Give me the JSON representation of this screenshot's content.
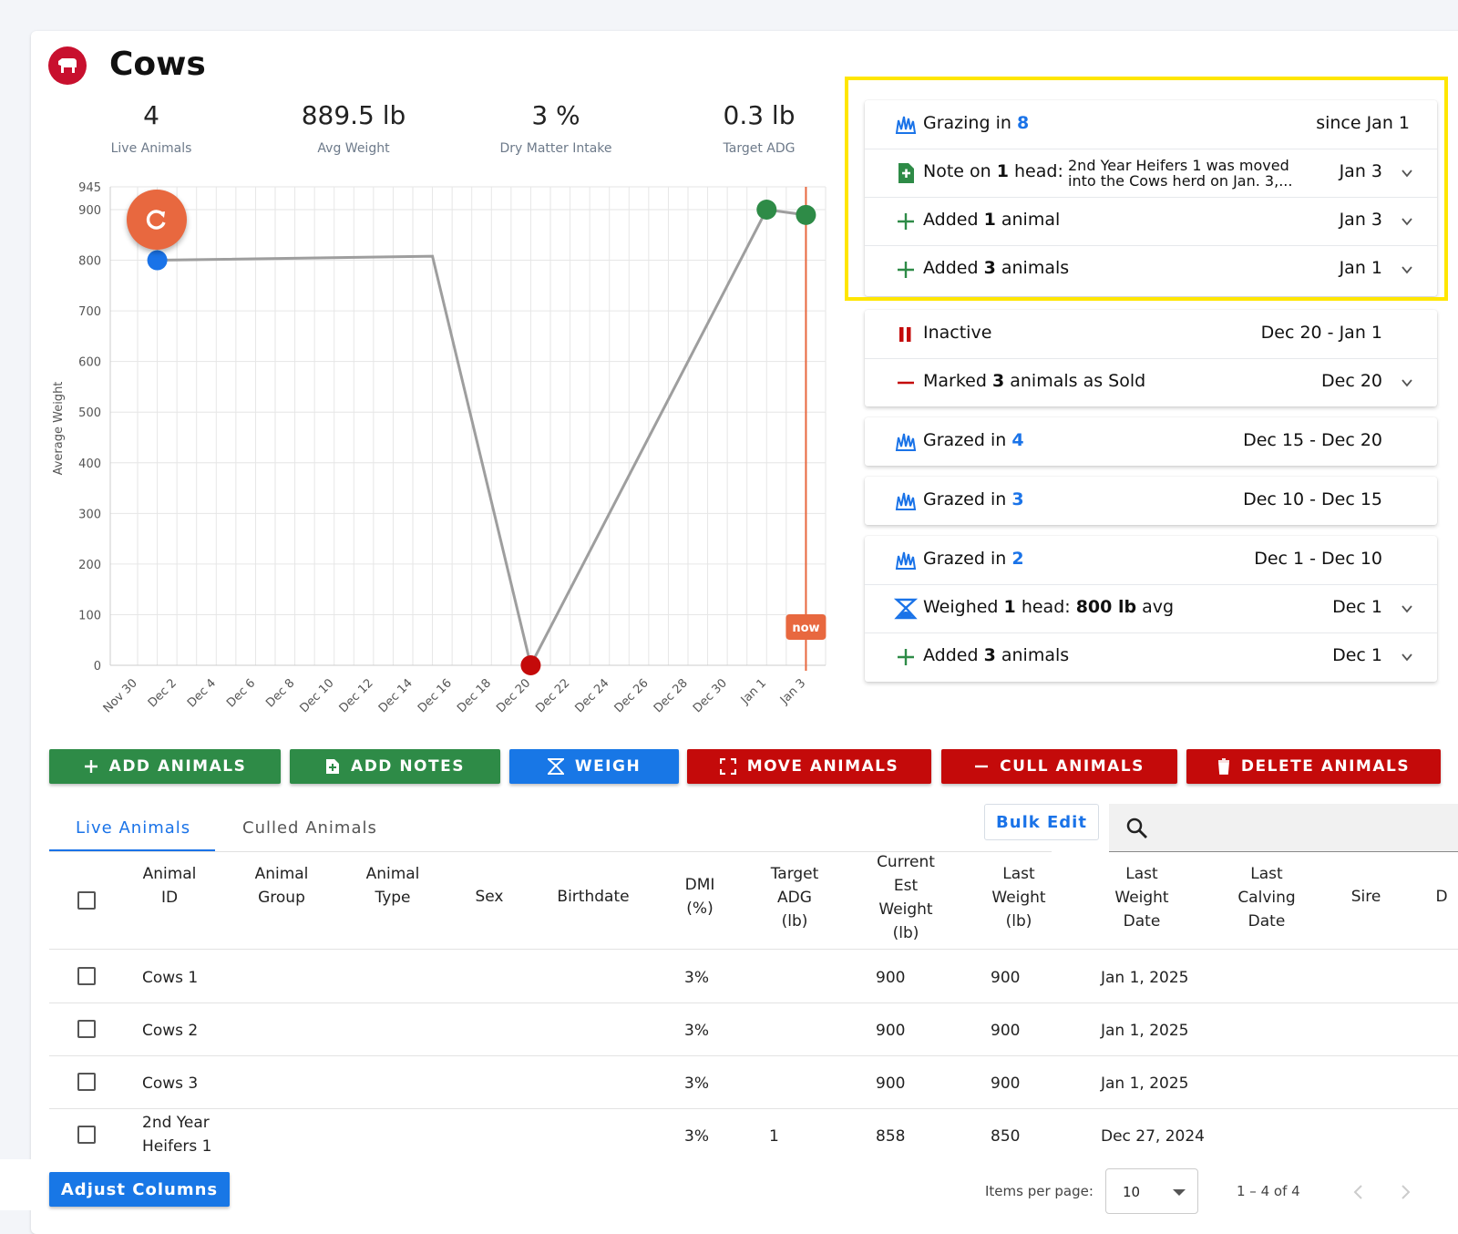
{
  "header": {
    "title": "Cows"
  },
  "stats": [
    {
      "value": "4",
      "label": "Live Animals"
    },
    {
      "value": "889.5 lb",
      "label": "Avg Weight"
    },
    {
      "value": "3 %",
      "label": "Dry Matter Intake"
    },
    {
      "value": "0.3 lb",
      "label": "Target ADG"
    }
  ],
  "chart_data": {
    "type": "line",
    "ylabel": "Average Weight",
    "ylim": [
      0,
      945
    ],
    "y_ticks": [
      "945",
      "900",
      "800",
      "700",
      "600",
      "500",
      "400",
      "300",
      "200",
      "100",
      "0"
    ],
    "x_ticks": [
      "Nov 30",
      "Dec 2",
      "Dec 4",
      "Dec 6",
      "Dec 8",
      "Dec 10",
      "Dec 12",
      "Dec 14",
      "Dec 16",
      "Dec 18",
      "Dec 20",
      "Dec 22",
      "Dec 24",
      "Dec 26",
      "Dec 28",
      "Dec 30",
      "Jan 1",
      "Jan 3"
    ],
    "points": [
      {
        "x": "Dec 1",
        "y": 800,
        "color": "#1a73e8"
      },
      {
        "x": "Dec 15",
        "y": 808,
        "color": null
      },
      {
        "x": "Dec 20",
        "y": 0,
        "color": "#c40a0a"
      },
      {
        "x": "Jan 1",
        "y": 900,
        "color": "#2e8b47"
      },
      {
        "x": "Jan 3",
        "y": 889.5,
        "color": "#2e8b47"
      }
    ],
    "line_color": "#9e9e9e",
    "now_marker": {
      "x": "Jan 3",
      "label": "now",
      "color": "#e8683f"
    },
    "grid": true
  },
  "timeline": [
    {
      "icon": "grass-icon",
      "text": "Grazing in ",
      "num": "8",
      "date": "since Jan 1",
      "chev": false
    },
    {
      "icon": "note-icon",
      "text": "Note on ",
      "bold": "1",
      "text2": " head:",
      "note": "2nd Year Heifers 1 was moved into the Cows herd on Jan. 3,...",
      "date": "Jan 3",
      "chev": true
    },
    {
      "icon": "plus-icon",
      "text": "Added ",
      "bold": "1",
      "text2": " animal",
      "date": "Jan 3",
      "chev": true
    },
    {
      "icon": "plus-icon",
      "text": "Added ",
      "bold": "3",
      "text2": " animals",
      "date": "Jan 1",
      "chev": true
    },
    {
      "icon": "pause-icon",
      "text": "Inactive",
      "date": "Dec 20 - Jan 1",
      "chev": false
    },
    {
      "icon": "minus-icon",
      "text": "Marked ",
      "bold": "3",
      "text2": " animals as Sold",
      "date": "Dec 20",
      "chev": true
    },
    {
      "icon": "grass-icon",
      "text": "Grazed in ",
      "num": "4",
      "date": "Dec 15 - Dec 20",
      "chev": false
    },
    {
      "icon": "grass-icon",
      "text": "Grazed in ",
      "num": "3",
      "date": "Dec 10 - Dec 15",
      "chev": false
    },
    {
      "icon": "grass-icon",
      "text": "Grazed in ",
      "num": "2",
      "date": "Dec 1 - Dec 10",
      "chev": false
    },
    {
      "icon": "scale-icon",
      "text": "Weighed ",
      "bold": "1",
      "text2": " head: ",
      "bold2": "800 lb",
      "text3": " avg",
      "date": "Dec 1",
      "chev": true
    },
    {
      "icon": "plus-icon",
      "text": "Added ",
      "bold": "3",
      "text2": " animals",
      "date": "Dec 1",
      "chev": true
    }
  ],
  "actions": {
    "add_animals": "ADD ANIMALS",
    "add_notes": "ADD NOTES",
    "weigh": "WEIGH",
    "move_animals": "MOVE ANIMALS",
    "cull_animals": "CULL ANIMALS",
    "delete_animals": "DELETE ANIMALS"
  },
  "tabs": {
    "live": "Live Animals",
    "culled": "Culled Animals"
  },
  "bulk_edit": "Bulk Edit",
  "table": {
    "headers": [
      "Animal\nID",
      "Animal\nGroup",
      "Animal\nType",
      "Sex",
      "Birthdate",
      "DMI\n(%)",
      "Target\nADG\n(lb)",
      "Current\nEst\nWeight\n(lb)",
      "Last\nWeight\n(lb)",
      "Last\nWeight\nDate",
      "Last\nCalving\nDate",
      "Sire",
      "D"
    ],
    "rows": [
      {
        "id": "Cows 1",
        "dmi": "3%",
        "adg": "",
        "est": "900",
        "last": "900",
        "date": "Jan 1, 2025"
      },
      {
        "id": "Cows 2",
        "dmi": "3%",
        "adg": "",
        "est": "900",
        "last": "900",
        "date": "Jan 1, 2025"
      },
      {
        "id": "Cows 3",
        "dmi": "3%",
        "adg": "",
        "est": "900",
        "last": "900",
        "date": "Jan 1, 2025"
      },
      {
        "id": "2nd Year\nHeifers 1",
        "dmi": "3%",
        "adg": "1",
        "est": "858",
        "last": "850",
        "date": "Dec 27, 2024"
      }
    ]
  },
  "footer": {
    "adjust_columns": "Adjust Columns",
    "items_per_page_label": "Items per page:",
    "items_per_page": "10",
    "range": "1 – 4 of 4"
  }
}
